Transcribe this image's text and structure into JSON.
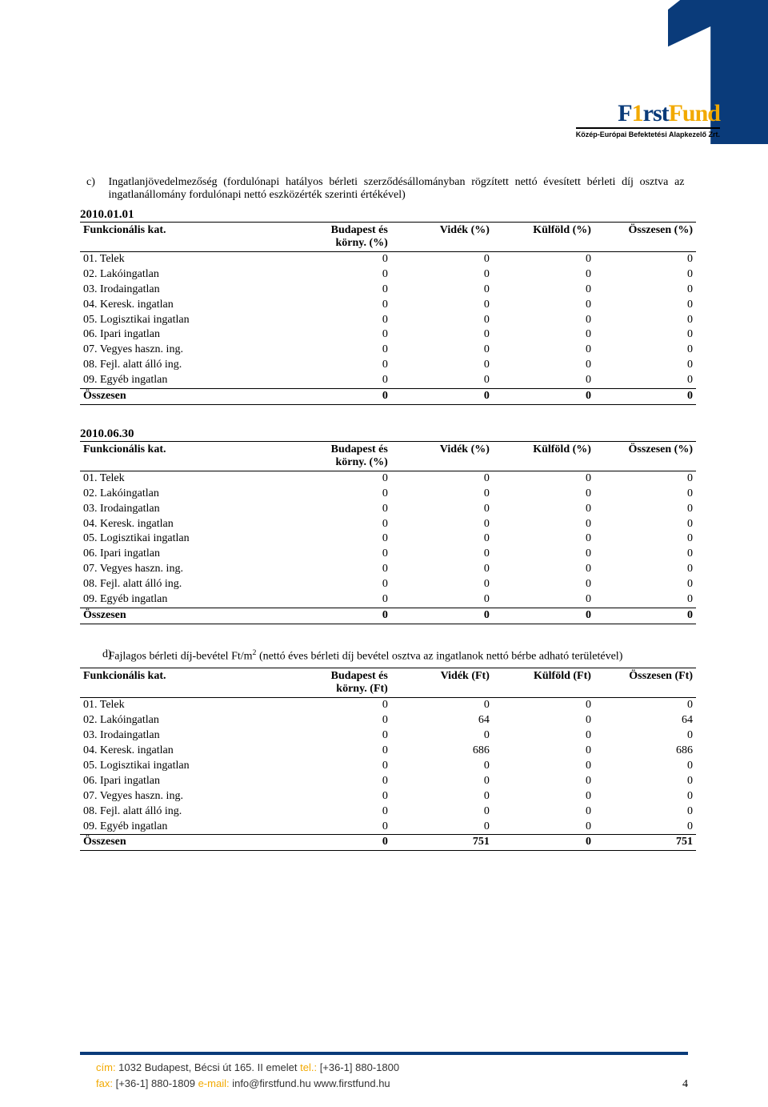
{
  "logo": {
    "first": "F",
    "one": "1",
    "rst": "rst",
    "fund": "Fund",
    "sub": "Közép-Európai Befektetési Alapkezelő Zrt."
  },
  "section_c": {
    "letter": "c)",
    "text": "Ingatlanjövedelmezőség (fordulónapi hatályos bérleti szerződésállományban rögzített nettó évesített bérleti díj osztva az ingatlanállomány fordulónapi nettó eszközérték szerinti értékével)"
  },
  "dates": {
    "t1": "2010.01.01",
    "t2": "2010.06.30"
  },
  "headers_pct": {
    "cat": "Funkcionális kat.",
    "c1a": "Budapest és",
    "c1b": "körny. (%)",
    "c2": "Vidék (%)",
    "c3": "Külföld (%)",
    "c4": "Összesen (%)"
  },
  "headers_ft": {
    "cat": "Funkcionális kat.",
    "c1a": "Budapest és",
    "c1b": "körny. (Ft)",
    "c2": "Vidék (Ft)",
    "c3": "Külföld (Ft)",
    "c4": "Összesen (Ft)"
  },
  "categories": [
    "01. Telek",
    "02. Lakóingatlan",
    "03. Irodaingatlan",
    "04. Keresk. ingatlan",
    "05. Logisztikai ingatlan",
    "06. Ipari ingatlan",
    "07. Vegyes haszn. ing.",
    "08. Fejl. alatt álló ing.",
    "09. Egyéb ingatlan"
  ],
  "total_label": "Összesen",
  "table1": {
    "rows": [
      [
        0,
        0,
        0,
        0
      ],
      [
        0,
        0,
        0,
        0
      ],
      [
        0,
        0,
        0,
        0
      ],
      [
        0,
        0,
        0,
        0
      ],
      [
        0,
        0,
        0,
        0
      ],
      [
        0,
        0,
        0,
        0
      ],
      [
        0,
        0,
        0,
        0
      ],
      [
        0,
        0,
        0,
        0
      ],
      [
        0,
        0,
        0,
        0
      ]
    ],
    "total": [
      0,
      0,
      0,
      0
    ]
  },
  "table2": {
    "rows": [
      [
        0,
        0,
        0,
        0
      ],
      [
        0,
        0,
        0,
        0
      ],
      [
        0,
        0,
        0,
        0
      ],
      [
        0,
        0,
        0,
        0
      ],
      [
        0,
        0,
        0,
        0
      ],
      [
        0,
        0,
        0,
        0
      ],
      [
        0,
        0,
        0,
        0
      ],
      [
        0,
        0,
        0,
        0
      ],
      [
        0,
        0,
        0,
        0
      ]
    ],
    "total": [
      0,
      0,
      0,
      0
    ]
  },
  "section_d": {
    "letter": "d)",
    "text_a": "Fajlagos bérleti díj-bevétel Ft/m",
    "sup": "2",
    "text_b": " (nettó éves bérleti díj bevétel osztva az ingatlanok nettó bérbe adható területével)"
  },
  "table3": {
    "rows": [
      [
        0,
        0,
        0,
        0
      ],
      [
        0,
        64,
        0,
        64
      ],
      [
        0,
        0,
        0,
        0
      ],
      [
        0,
        686,
        0,
        686
      ],
      [
        0,
        0,
        0,
        0
      ],
      [
        0,
        0,
        0,
        0
      ],
      [
        0,
        0,
        0,
        0
      ],
      [
        0,
        0,
        0,
        0
      ],
      [
        0,
        0,
        0,
        0
      ]
    ],
    "total": [
      0,
      751,
      0,
      751
    ]
  },
  "footer": {
    "cim_k": "cím:",
    "cim_v": " 1032 Budapest, Bécsi út 165. II emelet ",
    "tel_k": "tel.:",
    "tel_v": " [+36-1] 880-1800",
    "fax_k": "fax:",
    "fax_v": " [+36-1] 880-1809 ",
    "email_k": "e-mail:",
    "email_v": " info@firstfund.hu www.firstfund.hu"
  },
  "page_number": "4"
}
